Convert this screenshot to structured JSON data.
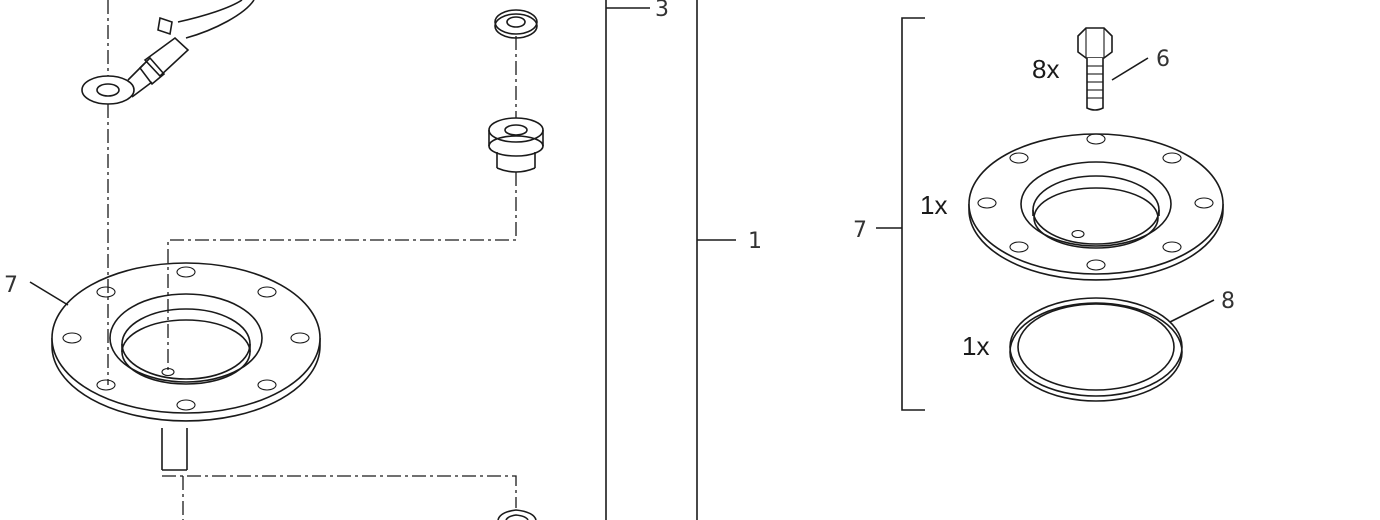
{
  "callouts": {
    "c3": "3",
    "c1": "1",
    "c7_left": "7",
    "c6": "6",
    "c7_right": "7",
    "c8": "8"
  },
  "quantities": {
    "bolts": "8x",
    "flange": "1x",
    "gasket": "1x"
  }
}
